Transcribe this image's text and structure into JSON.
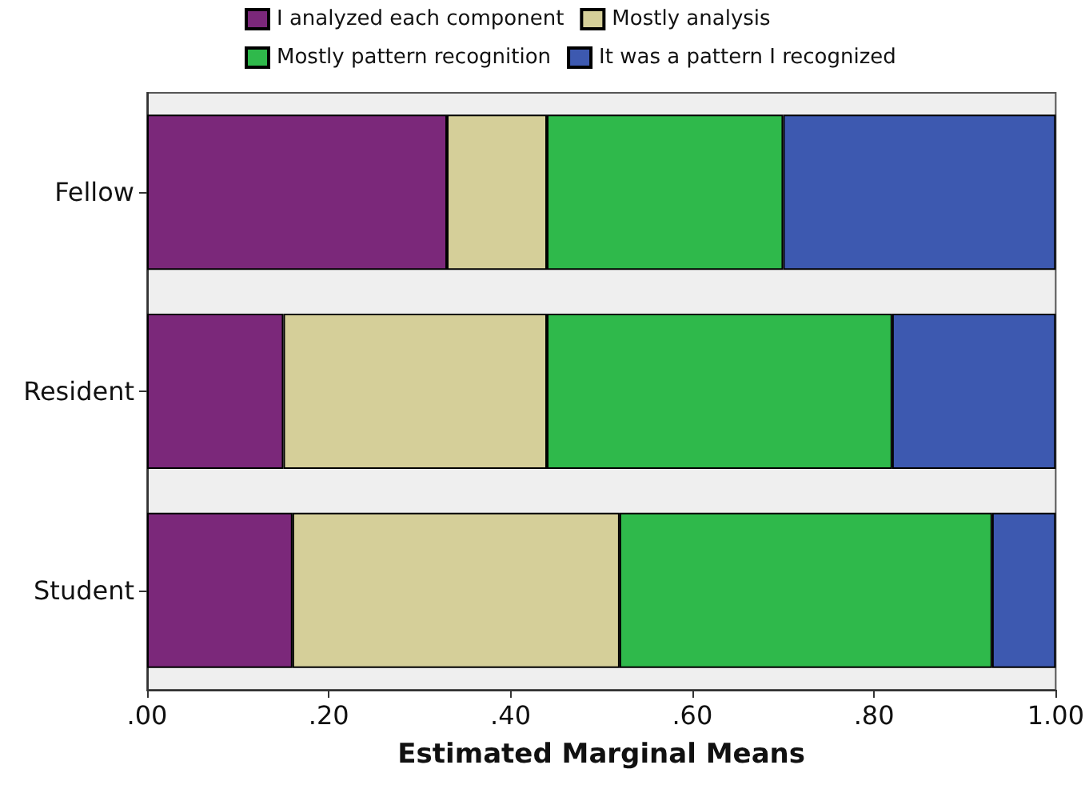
{
  "chart_data": {
    "type": "bar",
    "orientation": "horizontal",
    "stacked": true,
    "xlabel": "Estimated Marginal Means",
    "categories": [
      "Fellow",
      "Resident",
      "Student"
    ],
    "series": [
      {
        "name": "I analyzed each component",
        "color": "#7b287a",
        "values": [
          0.33,
          0.15,
          0.16
        ]
      },
      {
        "name": "Mostly analysis",
        "color": "#d5cf99",
        "values": [
          0.11,
          0.29,
          0.36
        ]
      },
      {
        "name": "Mostly pattern recognition",
        "color": "#2fb94b",
        "values": [
          0.26,
          0.38,
          0.41
        ]
      },
      {
        "name": "It was a pattern I recognized",
        "color": "#3d59b0",
        "values": [
          0.3,
          0.18,
          0.07
        ]
      }
    ],
    "xlim": [
      0,
      1
    ],
    "xticks": [
      {
        "value": 0,
        "label": ".00"
      },
      {
        "value": 0.2,
        "label": ".20"
      },
      {
        "value": 0.4,
        "label": ".40"
      },
      {
        "value": 0.6,
        "label": ".60"
      },
      {
        "value": 0.8,
        "label": ".80"
      },
      {
        "value": 1,
        "label": "1.00"
      }
    ],
    "grid": false,
    "legend": "top"
  }
}
